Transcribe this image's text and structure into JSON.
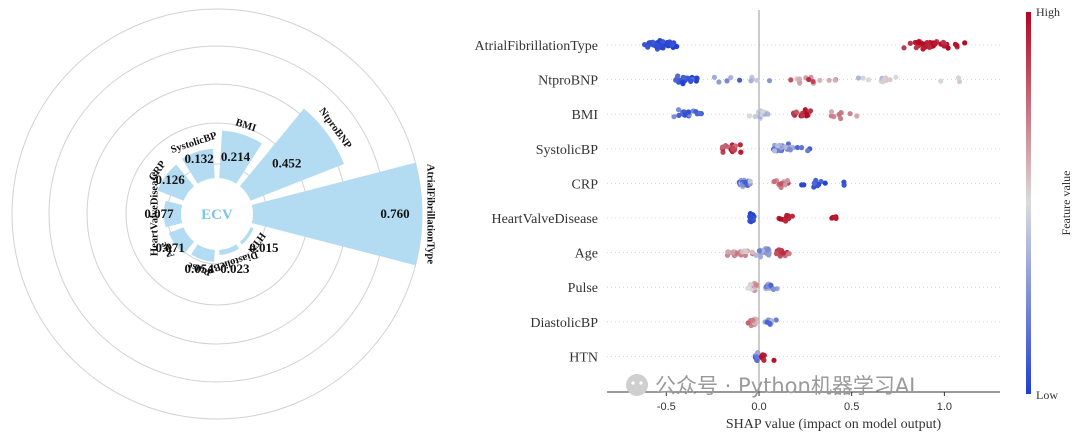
{
  "colors": {
    "bar_fill": "#b3dcf2",
    "center_text": "#7cc4ea",
    "low": "#1f3fd1",
    "mid": "#dcdcdc",
    "high": "#b4051f"
  },
  "chart_data": [
    {
      "type": "bar",
      "subtype": "polar",
      "center_label": "ECV",
      "categories": [
        "AtrialFibrillationType",
        "NtproBNP",
        "BMI",
        "SystolicBP",
        "CRP",
        "HeartValveDisease",
        "Age",
        "Pulse",
        "DiastolicBP",
        "HTN"
      ],
      "values": [
        0.76,
        0.452,
        0.214,
        0.132,
        0.126,
        0.077,
        0.071,
        0.054,
        0.023,
        0.015
      ],
      "value_labels": [
        "0.760",
        "0.452",
        "0.214",
        "0.132",
        "0.126",
        "0.077",
        "0.071",
        "0.054",
        "0.023",
        "0.015"
      ],
      "grid": true
    },
    {
      "type": "scatter",
      "subtype": "shap-beeswarm",
      "features": [
        "AtrialFibrillationType",
        "NtproBNP",
        "BMI",
        "SystolicBP",
        "CRP",
        "HeartValveDisease",
        "Age",
        "Pulse",
        "DiastolicBP",
        "HTN"
      ],
      "xlabel": "SHAP value (impact on model output)",
      "xlim": [
        -0.82,
        1.3
      ],
      "xticks": [
        "-0.5",
        "0.0",
        "0.5",
        "1.0"
      ],
      "xtick_values": [
        -0.5,
        0.0,
        0.5,
        1.0
      ],
      "colorbar": {
        "label": "Feature value",
        "high": "High",
        "low": "Low"
      },
      "grid": true
    }
  ],
  "watermark": "公众号 · Python机器学习AI"
}
